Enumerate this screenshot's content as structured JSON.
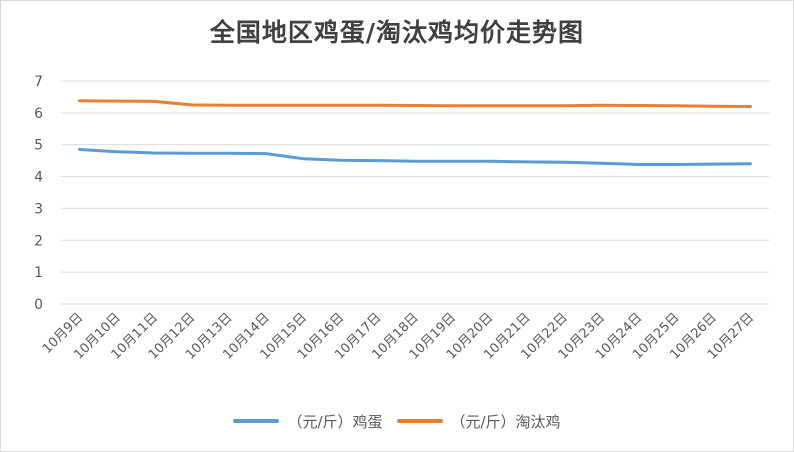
{
  "chart_data": {
    "type": "line",
    "title": "全国地区鸡蛋/淘汰鸡均价走势图",
    "xlabel": "",
    "ylabel": "",
    "ylim": [
      0,
      7
    ],
    "yticks": [
      0,
      1,
      2,
      3,
      4,
      5,
      6,
      7
    ],
    "grid": true,
    "legend": "bottom",
    "categories": [
      "10月9日",
      "10月10日",
      "10月11日",
      "10月12日",
      "10月13日",
      "10月14日",
      "10月15日",
      "10月16日",
      "10月17日",
      "10月18日",
      "10月19日",
      "10月20日",
      "10月21日",
      "10月22日",
      "10月23日",
      "10月24日",
      "10月25日",
      "10月26日",
      "10月27日"
    ],
    "series": [
      {
        "name": "（元/斤）鸡蛋",
        "color": "#5b9bd5",
        "values": [
          4.85,
          4.78,
          4.74,
          4.73,
          4.73,
          4.72,
          4.56,
          4.51,
          4.5,
          4.48,
          4.48,
          4.48,
          4.46,
          4.45,
          4.42,
          4.38,
          4.38,
          4.39,
          4.4
        ]
      },
      {
        "name": "（元/斤）淘汰鸡",
        "color": "#ed7d31",
        "values": [
          6.38,
          6.37,
          6.36,
          6.25,
          6.24,
          6.24,
          6.24,
          6.24,
          6.24,
          6.23,
          6.22,
          6.22,
          6.22,
          6.22,
          6.24,
          6.23,
          6.22,
          6.21,
          6.2
        ]
      }
    ]
  }
}
